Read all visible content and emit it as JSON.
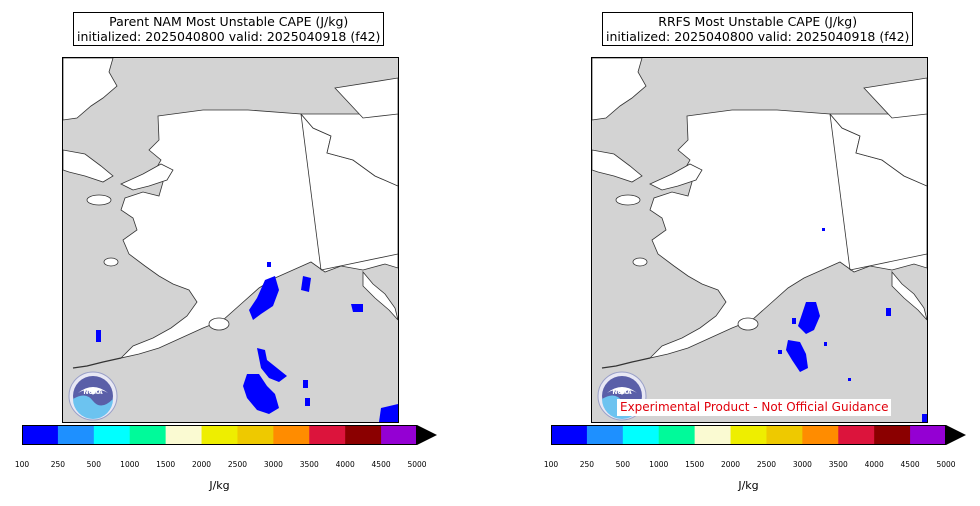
{
  "colors": {
    "land": "#ffffff",
    "ocean": "#d3d3d3",
    "cape_fill": "#0000ff",
    "colorbar": [
      "#0000ff",
      "#1e90ff",
      "#00ffff",
      "#00fa9a",
      "#fafad2",
      "#eeee00",
      "#eec900",
      "#ff8c00",
      "#dc143c",
      "#8b0000",
      "#9400d3"
    ],
    "over_color": "#000000",
    "disclaimer": "#e0000b"
  },
  "panels": [
    {
      "title_line1": "Parent NAM Most Unstable CAPE (J/kg)",
      "title_line2": "initialized: 2025040800 valid: 2025040918 (f42)",
      "logo_icon": "noaa-logo-icon",
      "logo_text": "NOAA",
      "disclaimer": ""
    },
    {
      "title_line1": "RRFS Most Unstable CAPE (J/kg)",
      "title_line2": "initialized: 2025040800 valid: 2025040918 (f42)",
      "logo_icon": "noaa-logo-icon",
      "logo_text": "NOAA",
      "disclaimer": "Experimental Product - Not Official Guidance"
    }
  ],
  "colorbar": {
    "ticks": [
      "100",
      "250",
      "500",
      "1000",
      "1500",
      "2000",
      "2500",
      "3000",
      "3500",
      "4000",
      "4500",
      "5000"
    ],
    "unit_label": "J/kg",
    "extend": "max"
  }
}
